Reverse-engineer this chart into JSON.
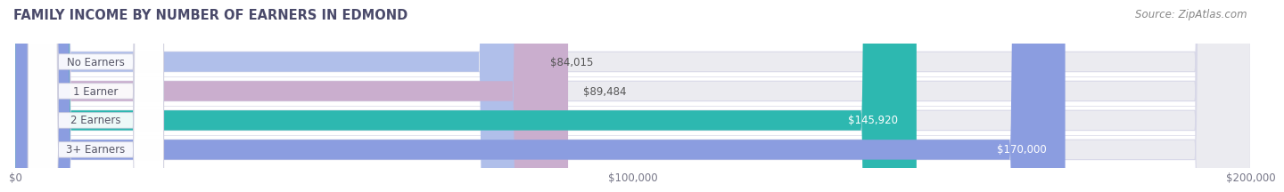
{
  "title": "FAMILY INCOME BY NUMBER OF EARNERS IN EDMOND",
  "source": "Source: ZipAtlas.com",
  "categories": [
    "No Earners",
    "1 Earner",
    "2 Earners",
    "3+ Earners"
  ],
  "values": [
    84015,
    89484,
    145920,
    170000
  ],
  "bar_colors": [
    "#b0bfea",
    "#caaece",
    "#2db8b0",
    "#8b9de0"
  ],
  "value_label_colors": [
    "#555555",
    "#555555",
    "#ffffff",
    "#ffffff"
  ],
  "value_labels": [
    "$84,015",
    "$89,484",
    "$145,920",
    "$170,000"
  ],
  "xlim": [
    0,
    200000
  ],
  "xticks": [
    0,
    100000,
    200000
  ],
  "xtick_labels": [
    "$0",
    "$100,000",
    "$200,000"
  ],
  "bg_color": "#ffffff",
  "bar_bg_color": "#ebebf0",
  "title_color": "#4a4a6a",
  "source_color": "#888888",
  "label_text_color": "#555566",
  "title_fontsize": 10.5,
  "source_fontsize": 8.5,
  "bar_label_fontsize": 8.5,
  "value_fontsize": 8.5,
  "tick_fontsize": 8.5
}
